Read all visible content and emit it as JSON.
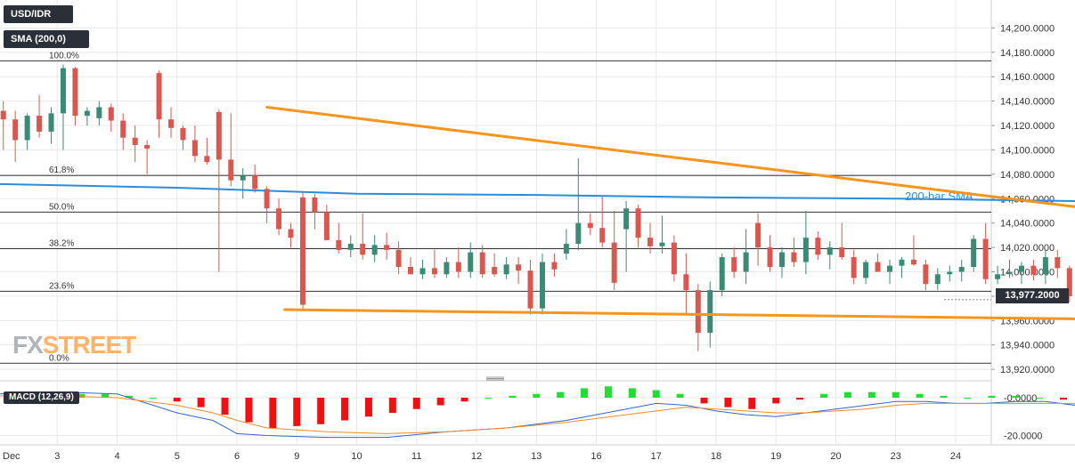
{
  "header": {
    "symbol": "USD/IDR",
    "indicator": "SMA (200,0)"
  },
  "branding": {
    "logo_left": "FX",
    "logo_right": "STREET"
  },
  "colors": {
    "bull": "#3a8a75",
    "bear": "#d9574f",
    "trendline": "#f7941d",
    "sma": "#2b8cdb",
    "grid": "#e8e8e8",
    "macd_hist_pos": "#22dd33",
    "macd_hist_neg": "#ee1111",
    "macd_line": "#3366cc",
    "signal_line": "#f28c28"
  },
  "chart_data": {
    "type": "candlestick",
    "pair": "USD/IDR",
    "yaxis": {
      "ticks": [
        "14,200.0000",
        "14,180.0000",
        "14,160.0000",
        "14,140.0000",
        "14,120.0000",
        "14,100.0000",
        "14,080.0000",
        "14,060.0000",
        "14,040.0000",
        "14,020.0000",
        "14,000.0000",
        "13,980.0000",
        "13,960.0000",
        "13,940.0000",
        "13,920.0000"
      ],
      "min": 13915,
      "max": 14220
    },
    "xaxis": {
      "ticks": [
        "Dec",
        "3",
        "4",
        "5",
        "6",
        "9",
        "10",
        "11",
        "12",
        "13",
        "16",
        "17",
        "18",
        "19",
        "20",
        "23",
        "24"
      ]
    },
    "last_price": "13,977.2000",
    "fibonacci": [
      {
        "label": "100.0%",
        "value": 14173
      },
      {
        "label": "61.8%",
        "value": 14079
      },
      {
        "label": "50.0%",
        "value": 14049
      },
      {
        "label": "38.2%",
        "value": 14019
      },
      {
        "label": "23.6%",
        "value": 13984
      },
      {
        "label": "0.0%",
        "value": 13925
      }
    ],
    "trendlines": [
      {
        "name": "upper",
        "from": [
          4.5,
          14135
        ],
        "to": [
          24,
          14017
        ]
      },
      {
        "name": "lower",
        "from": [
          4.8,
          13969
        ],
        "to": [
          24,
          13958
        ]
      }
    ],
    "sma": {
      "label": "200-bar SMA",
      "points": [
        [
          0,
          14072
        ],
        [
          3,
          14069
        ],
        [
          6,
          14064
        ],
        [
          9,
          14063
        ],
        [
          12,
          14061
        ],
        [
          15,
          14060
        ],
        [
          18,
          14058
        ],
        [
          21,
          14056
        ],
        [
          23.6,
          14056
        ]
      ]
    },
    "candles": [
      [
        0.1,
        14132,
        14140,
        14100,
        14125
      ],
      [
        0.3,
        14125,
        14132,
        14090,
        14108
      ],
      [
        0.5,
        14108,
        14130,
        14100,
        14128
      ],
      [
        0.7,
        14128,
        14145,
        14110,
        14115
      ],
      [
        0.9,
        14115,
        14135,
        14105,
        14130
      ],
      [
        1.1,
        14130,
        14170,
        14100,
        14167
      ],
      [
        1.3,
        14167,
        14168,
        14120,
        14128
      ],
      [
        1.5,
        14128,
        14135,
        14120,
        14132
      ],
      [
        1.7,
        14126,
        14140,
        14120,
        14135
      ],
      [
        1.9,
        14135,
        14138,
        14115,
        14124
      ],
      [
        2.1,
        14124,
        14130,
        14100,
        14110
      ],
      [
        2.3,
        14110,
        14120,
        14090,
        14104
      ],
      [
        2.5,
        14104,
        14108,
        14080,
        14101
      ],
      [
        2.7,
        14163,
        14165,
        14110,
        14125
      ],
      [
        2.9,
        14125,
        14135,
        14110,
        14118
      ],
      [
        3.1,
        14118,
        14120,
        14100,
        14108
      ],
      [
        3.3,
        14108,
        14120,
        14090,
        14095
      ],
      [
        3.5,
        14095,
        14110,
        14088,
        14090
      ],
      [
        3.7,
        14131,
        14133,
        14000,
        14092
      ],
      [
        3.9,
        14092,
        14130,
        14070,
        14075
      ],
      [
        4.1,
        14075,
        14085,
        14060,
        14079
      ],
      [
        4.3,
        14079,
        14088,
        14065,
        14068
      ],
      [
        4.5,
        14068,
        14070,
        14040,
        14052
      ],
      [
        4.7,
        14052,
        14060,
        14030,
        14035
      ],
      [
        4.9,
        14035,
        14040,
        14020,
        14028
      ],
      [
        5.1,
        14061,
        14065,
        13968,
        13973
      ],
      [
        5.3,
        14061,
        14064,
        14035,
        14049
      ],
      [
        5.5,
        14049,
        14055,
        14028,
        14026
      ],
      [
        5.7,
        14026,
        14040,
        14015,
        14018
      ],
      [
        5.9,
        14018,
        14030,
        14012,
        14023
      ],
      [
        6.1,
        14023,
        14048,
        14010,
        14014
      ],
      [
        6.3,
        14014,
        14030,
        14008,
        14022
      ],
      [
        6.5,
        14022,
        14032,
        14010,
        14018
      ],
      [
        6.7,
        14018,
        14025,
        13998,
        14004
      ],
      [
        6.9,
        14004,
        14012,
        13998,
        13998
      ],
      [
        7.1,
        13998,
        14010,
        13994,
        14003
      ],
      [
        7.3,
        14003,
        14018,
        13995,
        13998
      ],
      [
        7.5,
        13998,
        14012,
        13995,
        14008
      ],
      [
        7.7,
        14008,
        14020,
        13995,
        14000
      ],
      [
        7.9,
        14000,
        14024,
        13995,
        14016
      ],
      [
        8.1,
        14016,
        14022,
        13995,
        13998
      ],
      [
        8.3,
        14004,
        14015,
        13996,
        13998
      ],
      [
        8.5,
        13998,
        14012,
        13994,
        14006
      ],
      [
        8.7,
        14006,
        14012,
        13990,
        14001
      ],
      [
        8.9,
        14001,
        14010,
        13965,
        13970
      ],
      [
        9.1,
        13970,
        14015,
        13965,
        14008
      ],
      [
        9.3,
        14008,
        14015,
        13996,
        14002
      ],
      [
        9.5,
        14015,
        14035,
        14010,
        14023
      ],
      [
        9.7,
        14023,
        14093,
        14018,
        14040
      ],
      [
        9.9,
        14040,
        14048,
        14030,
        14036
      ],
      [
        10.1,
        14036,
        14062,
        14020,
        14024
      ],
      [
        10.3,
        14024,
        14050,
        13985,
        13991
      ],
      [
        10.5,
        14035,
        14058,
        14000,
        14052
      ],
      [
        10.7,
        14052,
        14055,
        14020,
        14028
      ],
      [
        10.9,
        14028,
        14040,
        14015,
        14021
      ],
      [
        11.1,
        14021,
        14046,
        14015,
        14024
      ],
      [
        11.3,
        14024,
        14030,
        13992,
        13998
      ],
      [
        11.5,
        13998,
        14015,
        13965,
        13985
      ],
      [
        11.7,
        13985,
        13990,
        13935,
        13950
      ],
      [
        11.9,
        13950,
        13992,
        13938,
        13985
      ],
      [
        12.1,
        13985,
        14015,
        13980,
        14012
      ],
      [
        12.3,
        14012,
        14020,
        13995,
        14000
      ],
      [
        12.5,
        14000,
        14035,
        13990,
        14016
      ],
      [
        12.7,
        14040,
        14048,
        14005,
        14020
      ],
      [
        12.9,
        14020,
        14030,
        14000,
        14004
      ],
      [
        13.1,
        14004,
        14020,
        13995,
        14016
      ],
      [
        13.3,
        14016,
        14028,
        14004,
        14008
      ],
      [
        13.5,
        14008,
        14050,
        13998,
        14028
      ],
      [
        13.7,
        14028,
        14033,
        14010,
        14014
      ],
      [
        13.9,
        14014,
        14025,
        14002,
        14020
      ],
      [
        14.1,
        14020,
        14040,
        14010,
        14012
      ],
      [
        14.3,
        14012,
        14018,
        13990,
        13995
      ],
      [
        14.5,
        13995,
        14010,
        13990,
        14008
      ],
      [
        14.7,
        14008,
        14015,
        14000,
        14000
      ],
      [
        14.9,
        14000,
        14010,
        13990,
        14005
      ],
      [
        15.1,
        14005,
        14012,
        13995,
        14010
      ],
      [
        15.3,
        14010,
        14030,
        14005,
        14006
      ],
      [
        15.5,
        14006,
        14010,
        13985,
        13990
      ],
      [
        15.7,
        13990,
        14003,
        13985,
        13998
      ],
      [
        15.9,
        13998,
        14005,
        13992,
        14000
      ],
      [
        16.1,
        14000,
        14010,
        13992,
        14004
      ],
      [
        16.3,
        14004,
        14030,
        14000,
        14027
      ],
      [
        16.5,
        14027,
        14040,
        13990,
        13994
      ],
      [
        16.7,
        13994,
        14005,
        13990,
        13998
      ],
      [
        16.9,
        13998,
        14010,
        13995,
        14000
      ],
      [
        17.1,
        14000,
        14008,
        13990,
        14005
      ],
      [
        17.3,
        14005,
        14010,
        13993,
        13998
      ],
      [
        17.5,
        13998,
        14018,
        13990,
        14012
      ],
      [
        17.7,
        14012,
        14018,
        13995,
        14003
      ],
      [
        17.9,
        14003,
        14005,
        13975,
        13980
      ],
      [
        18.1,
        13980,
        13988,
        13960,
        13962
      ],
      [
        18.3,
        13962,
        13975,
        13960,
        13970
      ],
      [
        18.5,
        13970,
        13990,
        13965,
        13982
      ],
      [
        18.7,
        13982,
        13985,
        13970,
        13977
      ]
    ],
    "macd": {
      "label": "MACD (12,26,9)",
      "ticks": [
        "-0.0000",
        "-20.0000"
      ],
      "min": -24,
      "max": 8,
      "histogram": [
        [
          0.2,
          3
        ],
        [
          0.6,
          3
        ],
        [
          1.0,
          3
        ],
        [
          1.4,
          2
        ],
        [
          1.8,
          2
        ],
        [
          2.2,
          1
        ],
        [
          2.6,
          0
        ],
        [
          3.0,
          -2
        ],
        [
          3.4,
          -5
        ],
        [
          3.8,
          -9
        ],
        [
          4.2,
          -13
        ],
        [
          4.6,
          -16
        ],
        [
          5.0,
          -15
        ],
        [
          5.4,
          -14
        ],
        [
          5.8,
          -12
        ],
        [
          6.2,
          -10
        ],
        [
          6.6,
          -8
        ],
        [
          7.0,
          -6
        ],
        [
          7.4,
          -4
        ],
        [
          7.8,
          -2
        ],
        [
          8.2,
          0
        ],
        [
          8.6,
          1
        ],
        [
          9.0,
          2
        ],
        [
          9.4,
          3
        ],
        [
          9.8,
          5
        ],
        [
          10.2,
          6
        ],
        [
          10.6,
          5
        ],
        [
          11.0,
          4
        ],
        [
          11.4,
          2
        ],
        [
          11.8,
          -3
        ],
        [
          12.2,
          -5
        ],
        [
          12.6,
          -6
        ],
        [
          13.0,
          -3
        ],
        [
          13.4,
          -1
        ],
        [
          13.8,
          2
        ],
        [
          14.2,
          3
        ],
        [
          14.6,
          3
        ],
        [
          15.0,
          3
        ],
        [
          15.4,
          2
        ],
        [
          15.8,
          1
        ],
        [
          16.2,
          0
        ],
        [
          16.6,
          1
        ],
        [
          17.0,
          1
        ],
        [
          17.4,
          0
        ],
        [
          17.8,
          -1
        ],
        [
          18.2,
          -2
        ],
        [
          18.6,
          -3
        ]
      ],
      "macd_line": [
        [
          0.0,
          2
        ],
        [
          1.0,
          3
        ],
        [
          2.0,
          2
        ],
        [
          3.0,
          -8
        ],
        [
          3.6,
          -12
        ],
        [
          4.0,
          -19
        ],
        [
          4.5,
          -20
        ],
        [
          5.5,
          -21
        ],
        [
          6.5,
          -21
        ],
        [
          7.5,
          -18
        ],
        [
          8.5,
          -16
        ],
        [
          9.5,
          -12
        ],
        [
          10.5,
          -6
        ],
        [
          11.0,
          -3
        ],
        [
          11.5,
          -4
        ],
        [
          12.0,
          -7
        ],
        [
          12.5,
          -9
        ],
        [
          13.0,
          -10
        ],
        [
          13.5,
          -8
        ],
        [
          14.0,
          -6
        ],
        [
          14.5,
          -4
        ],
        [
          15.0,
          -2
        ],
        [
          15.5,
          -2
        ],
        [
          16.0,
          -3
        ],
        [
          16.5,
          -3
        ],
        [
          17.0,
          -2
        ],
        [
          17.5,
          -2
        ],
        [
          18.0,
          -4
        ],
        [
          18.4,
          -7
        ],
        [
          18.7,
          -7
        ]
      ],
      "signal_line": [
        [
          0.0,
          1
        ],
        [
          1.0,
          1
        ],
        [
          2.0,
          0
        ],
        [
          3.0,
          -4
        ],
        [
          3.6,
          -8
        ],
        [
          4.0,
          -12
        ],
        [
          4.5,
          -16
        ],
        [
          5.5,
          -18
        ],
        [
          6.5,
          -19
        ],
        [
          7.5,
          -18
        ],
        [
          8.5,
          -16
        ],
        [
          9.5,
          -13
        ],
        [
          10.5,
          -9
        ],
        [
          11.0,
          -7
        ],
        [
          11.5,
          -5
        ],
        [
          12.0,
          -6
        ],
        [
          12.5,
          -7
        ],
        [
          13.0,
          -8
        ],
        [
          13.5,
          -8
        ],
        [
          14.0,
          -7
        ],
        [
          14.5,
          -6
        ],
        [
          15.0,
          -4
        ],
        [
          15.5,
          -3
        ],
        [
          16.0,
          -3
        ],
        [
          16.5,
          -3
        ],
        [
          17.0,
          -3
        ],
        [
          17.5,
          -3
        ],
        [
          18.0,
          -3
        ],
        [
          18.4,
          -4
        ],
        [
          18.7,
          -5
        ]
      ]
    }
  }
}
